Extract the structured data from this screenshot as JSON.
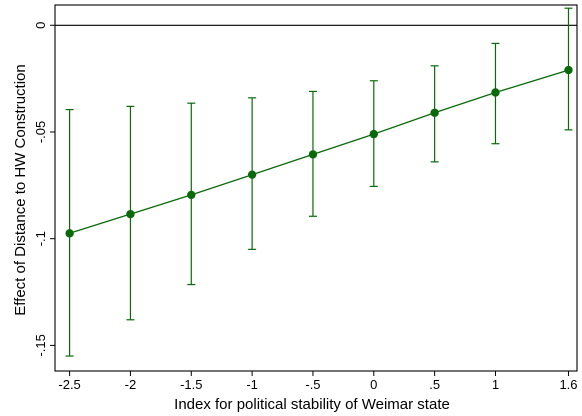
{
  "chart_data": {
    "type": "scatter",
    "title": "",
    "xlabel": "Index for political stability of Weimar state",
    "ylabel": "Effect of Distance to HW Construction",
    "x": [
      -2.5,
      -2,
      -1.5,
      -1,
      -0.5,
      0,
      0.5,
      1,
      1.6
    ],
    "series": [
      {
        "values": [
          -0.0975,
          -0.0885,
          -0.0795,
          -0.07,
          -0.0605,
          -0.051,
          -0.041,
          -0.0315,
          -0.021
        ],
        "ci_low": [
          -0.155,
          -0.138,
          -0.1215,
          -0.105,
          -0.0895,
          -0.0755,
          -0.064,
          -0.0555,
          -0.049
        ],
        "ci_high": [
          -0.0395,
          -0.038,
          -0.0365,
          -0.034,
          -0.031,
          -0.026,
          -0.019,
          -0.0085,
          0.008
        ]
      }
    ],
    "reference_line": 0,
    "xticks": [
      -2.5,
      -2,
      -1.5,
      -1,
      -0.5,
      0,
      0.5,
      1,
      1.6
    ],
    "xtick_labels": [
      "-2.5",
      "-2",
      "-1.5",
      "-1",
      "-.5",
      "0",
      ".5",
      "1",
      "1.6"
    ],
    "yticks": [
      0,
      -0.05,
      -0.1,
      -0.15
    ],
    "ytick_labels": [
      "0",
      "-.05",
      "-.1",
      "-.15"
    ],
    "xlim": [
      -2.62,
      1.67
    ],
    "ylim": [
      -0.162,
      0.0095
    ],
    "grid": false,
    "colors": {
      "series": "#0a6a0a",
      "axis": "#000000",
      "reference": "#000000"
    }
  }
}
